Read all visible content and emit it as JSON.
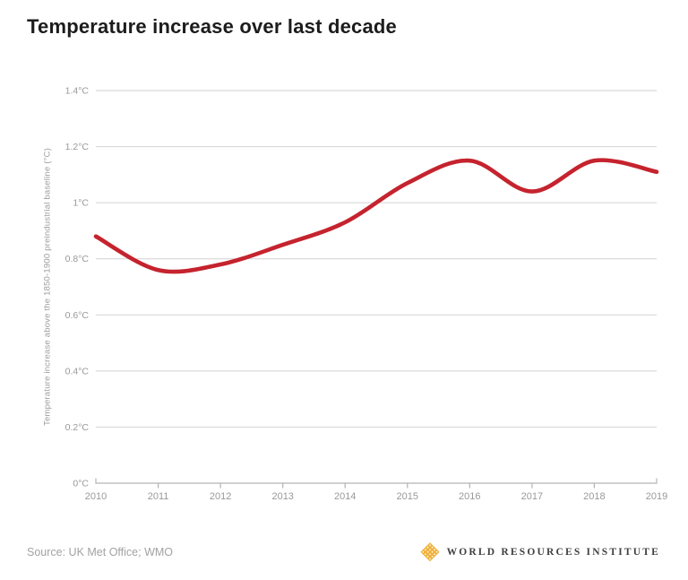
{
  "header": {
    "title": "Temperature increase over last decade"
  },
  "chart_data": {
    "type": "line",
    "title": "Temperature increase over last decade",
    "x": [
      2010,
      2011,
      2012,
      2013,
      2014,
      2015,
      2016,
      2017,
      2018,
      2019
    ],
    "values": [
      0.88,
      0.76,
      0.78,
      0.85,
      0.93,
      1.07,
      1.15,
      1.04,
      1.15,
      1.11
    ],
    "series_name": "Temperature increase above preindustrial baseline",
    "xlabel": "",
    "ylabel": "Temperature increase above the 1850-1900 preindustrial baseline (°C)",
    "ylim": [
      0,
      1.4
    ],
    "yticks": [
      0,
      0.2,
      0.4,
      0.6,
      0.8,
      1,
      1.2,
      1.4
    ],
    "ytick_labels": [
      "0°C",
      "0.2°C",
      "0.4°C",
      "0.6°C",
      "0.8°C",
      "1°C",
      "1.2°C",
      "1.4°C"
    ],
    "xtick_labels": [
      "2010",
      "2011",
      "2012",
      "2013",
      "2014",
      "2015",
      "2016",
      "2017",
      "2018",
      "2019"
    ],
    "grid": "horizontal",
    "legend": "none",
    "smooth": true,
    "line_color": "#c5232e"
  },
  "footer": {
    "source": "Source: UK Met Office; WMO",
    "logo_text": "WORLD RESOURCES INSTITUTE",
    "logo_color": "#f0b23c"
  }
}
